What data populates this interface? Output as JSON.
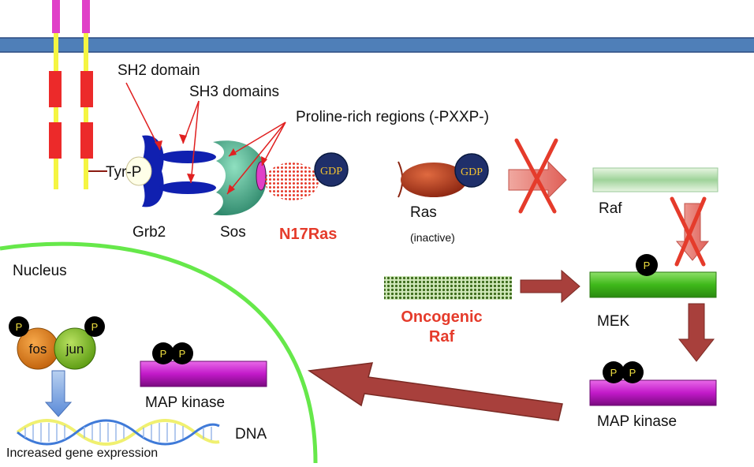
{
  "colors": {
    "membrane": "#4f7fb8",
    "receptor_pink": "#e040c8",
    "receptor_yellow": "#f5f542",
    "receptor_red": "#ec2a2a",
    "grb2_blue": "#1020b0",
    "sos_green": "#2f9f7e",
    "ras_red": "#b4371a",
    "gdp_navy": "#1f2f6a",
    "gdp_text": "#f0c030",
    "n17ras_red": "#e53b2b",
    "nucleus_green": "#66e84a",
    "mek_green": "#3fb81a",
    "mapk_magenta": "#c21ac9",
    "arrow_brown": "#a8403c",
    "cross_red": "#e53b2b",
    "fos_orange": "#e07c10",
    "jun_green": "#7ab820",
    "dna_yellow": "#f0f070",
    "dna_blue": "#3f7ad8"
  },
  "labels": {
    "sh2_domain": "SH2 domain",
    "sh3_domains": "SH3 domains",
    "proline_rich": "Proline-rich regions (-PXXP-)",
    "tyr_p": "Tyr-P",
    "grb2": "Grb2",
    "sos": "Sos",
    "n17ras": "N17Ras",
    "gdp": "GDP",
    "ras": "Ras",
    "inactive": "(inactive)",
    "raf": "Raf",
    "mek": "MEK",
    "oncogenic_raf_line1": "Oncogenic",
    "oncogenic_raf_line2": "Raf",
    "nucleus": "Nucleus",
    "map_kinase_nucleus": "MAP kinase",
    "map_kinase_right": "MAP kinase",
    "fos": "fos",
    "jun": "jun",
    "dna": "DNA",
    "increased_gene_expression": "Increased gene expression",
    "phospho": "P"
  }
}
